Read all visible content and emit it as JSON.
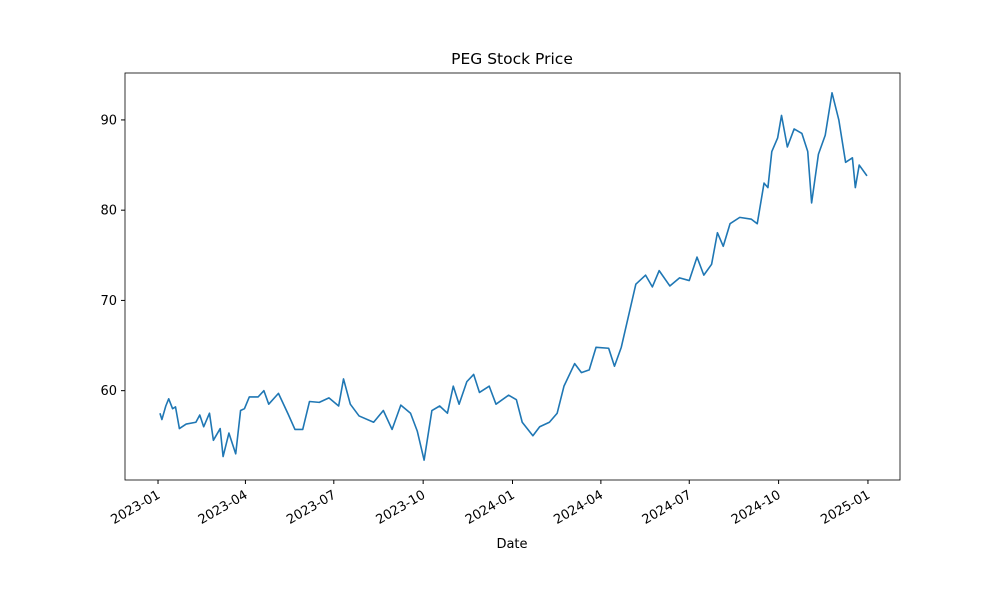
{
  "chart_data": {
    "type": "line",
    "title": "PEG Stock Price",
    "x_label": "Date",
    "x": [
      "2023-01-03",
      "2023-01-05",
      "2023-01-09",
      "2023-01-12",
      "2023-01-16",
      "2023-01-19",
      "2023-01-23",
      "2023-01-30",
      "2023-02-09",
      "2023-02-13",
      "2023-02-17",
      "2023-02-23",
      "2023-02-27",
      "2023-03-06",
      "2023-03-09",
      "2023-03-15",
      "2023-03-22",
      "2023-03-27",
      "2023-03-31",
      "2023-04-05",
      "2023-04-14",
      "2023-04-20",
      "2023-04-25",
      "2023-05-05",
      "2023-05-15",
      "2023-05-22",
      "2023-05-30",
      "2023-06-06",
      "2023-06-16",
      "2023-06-26",
      "2023-07-06",
      "2023-07-11",
      "2023-07-18",
      "2023-07-27",
      "2023-08-11",
      "2023-08-21",
      "2023-08-30",
      "2023-09-08",
      "2023-09-18",
      "2023-09-25",
      "2023-10-02",
      "2023-10-10",
      "2023-10-18",
      "2023-10-26",
      "2023-11-01",
      "2023-11-07",
      "2023-11-15",
      "2023-11-22",
      "2023-11-28",
      "2023-12-08",
      "2023-12-15",
      "2023-12-28",
      "2024-01-05",
      "2024-01-11",
      "2024-01-22",
      "2024-01-29",
      "2024-02-08",
      "2024-02-16",
      "2024-02-23",
      "2024-03-05",
      "2024-03-12",
      "2024-03-20",
      "2024-03-27",
      "2024-04-09",
      "2024-04-15",
      "2024-04-22",
      "2024-05-01",
      "2024-05-07",
      "2024-05-17",
      "2024-05-24",
      "2024-05-31",
      "2024-06-11",
      "2024-06-21",
      "2024-07-01",
      "2024-07-09",
      "2024-07-16",
      "2024-07-24",
      "2024-07-30",
      "2024-08-05",
      "2024-08-12",
      "2024-08-22",
      "2024-09-03",
      "2024-09-09",
      "2024-09-16",
      "2024-09-20",
      "2024-09-24",
      "2024-09-30",
      "2024-10-04",
      "2024-10-10",
      "2024-10-17",
      "2024-10-25",
      "2024-10-31",
      "2024-11-04",
      "2024-11-11",
      "2024-11-18",
      "2024-11-25",
      "2024-12-02",
      "2024-12-09",
      "2024-12-16",
      "2024-12-19",
      "2024-12-23",
      "2024-12-31"
    ],
    "series": [
      {
        "color": "#1f77b4",
        "values": [
          57.5,
          56.8,
          58.3,
          59.1,
          58.0,
          58.2,
          55.8,
          56.3,
          56.5,
          57.3,
          56.0,
          57.5,
          54.5,
          55.8,
          52.7,
          55.3,
          53.0,
          57.8,
          58.0,
          59.3,
          59.3,
          60.0,
          58.5,
          59.7,
          57.4,
          55.7,
          55.7,
          58.8,
          58.7,
          59.2,
          58.3,
          61.3,
          58.5,
          57.2,
          56.5,
          57.8,
          55.7,
          58.4,
          57.5,
          55.5,
          52.3,
          57.8,
          58.3,
          57.5,
          60.5,
          58.5,
          61.0,
          61.8,
          59.8,
          60.5,
          58.5,
          59.5,
          59.0,
          56.5,
          55.0,
          56.0,
          56.5,
          57.5,
          60.5,
          63.0,
          62.0,
          62.3,
          64.8,
          64.7,
          62.7,
          64.8,
          69.0,
          71.8,
          72.8,
          71.5,
          73.3,
          71.6,
          72.5,
          72.2,
          74.8,
          72.8,
          74.0,
          77.5,
          76.0,
          78.5,
          79.2,
          79.0,
          78.5,
          83.0,
          82.5,
          86.5,
          88.0,
          90.5,
          87.0,
          89.0,
          88.5,
          86.5,
          80.8,
          86.2,
          88.3,
          93.0,
          90.0,
          85.3,
          85.8,
          82.5,
          85.0,
          83.8
        ]
      }
    ],
    "xlim": [
      "2022-11-28",
      "2025-02-03"
    ],
    "xticks": [
      {
        "value": "2023-01-01",
        "label": "2023-01"
      },
      {
        "value": "2023-04-01",
        "label": "2023-04"
      },
      {
        "value": "2023-07-01",
        "label": "2023-07"
      },
      {
        "value": "2023-10-01",
        "label": "2023-10"
      },
      {
        "value": "2024-01-01",
        "label": "2024-01"
      },
      {
        "value": "2024-04-01",
        "label": "2024-04"
      },
      {
        "value": "2024-07-01",
        "label": "2024-07"
      },
      {
        "value": "2024-10-01",
        "label": "2024-10"
      },
      {
        "value": "2025-01-01",
        "label": "2025-01"
      }
    ],
    "ylim": [
      50.1,
      95.2
    ],
    "yticks": [
      60,
      70,
      80,
      90
    ],
    "grid": false
  }
}
